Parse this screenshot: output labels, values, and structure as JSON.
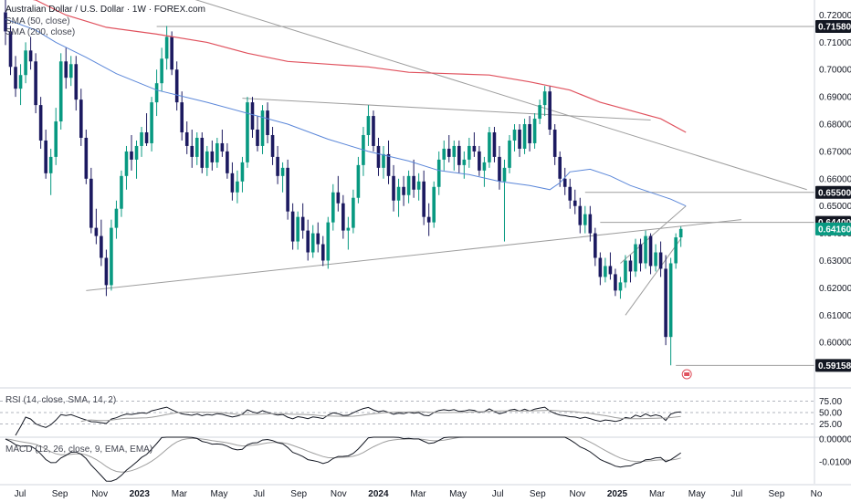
{
  "header": {
    "title": "Australian Dollar / U.S. Dollar · 1W · FOREX.com",
    "sma50_label": "SMA (50, close)",
    "sma200_label": "SMA (200, close)",
    "rsi_label": "RSI (14, close, SMA, 14, 2)",
    "macd_label": "MACD (12, 26, close, 9, EMA, EMA)"
  },
  "colors": {
    "up": "#089981",
    "down": "#1c1a60",
    "sma50": "#5b87d9",
    "sma200": "#e0525e",
    "trendline": "#9e9e9e",
    "level_tag": "#131722",
    "last_tag": "#089981"
  },
  "chart_data": {
    "type": "candlestick",
    "symbol": "AUDUSD",
    "timeframe": "1W",
    "price_axis": {
      "ticks": [
        "0.72000",
        "0.71000",
        "0.70000",
        "0.69000",
        "0.68000",
        "0.67000",
        "0.66000",
        "0.65000",
        "0.64000",
        "0.63000",
        "0.62000",
        "0.61000",
        "0.60000"
      ],
      "range": [
        0.585,
        0.7235
      ]
    },
    "price_tags": [
      {
        "label": "0.71580",
        "value": 0.7158,
        "style": "level"
      },
      {
        "label": "0.65500",
        "value": 0.655,
        "style": "level"
      },
      {
        "label": "0.64400",
        "value": 0.644,
        "style": "level"
      },
      {
        "label": "0.64160",
        "value": 0.6416,
        "style": "last"
      },
      {
        "label": "0.59158",
        "value": 0.59158,
        "style": "level"
      }
    ],
    "time_axis": [
      "Jul",
      "Sep",
      "Nov",
      "2023",
      "Mar",
      "May",
      "Jul",
      "Sep",
      "Nov",
      "2024",
      "Mar",
      "May",
      "Jul",
      "Sep",
      "Nov",
      "2025",
      "Mar",
      "May",
      "Jul",
      "Sep",
      "No"
    ],
    "candles": [
      [
        0.721,
        0.728,
        0.709,
        0.714
      ],
      [
        0.714,
        0.716,
        0.698,
        0.701
      ],
      [
        0.701,
        0.705,
        0.69,
        0.693
      ],
      [
        0.693,
        0.702,
        0.687,
        0.698
      ],
      [
        0.698,
        0.71,
        0.695,
        0.707
      ],
      [
        0.707,
        0.712,
        0.7,
        0.703
      ],
      [
        0.703,
        0.706,
        0.684,
        0.687
      ],
      [
        0.687,
        0.69,
        0.671,
        0.674
      ],
      [
        0.674,
        0.678,
        0.66,
        0.662
      ],
      [
        0.662,
        0.671,
        0.654,
        0.668
      ],
      [
        0.668,
        0.686,
        0.665,
        0.681
      ],
      [
        0.681,
        0.706,
        0.678,
        0.703
      ],
      [
        0.703,
        0.708,
        0.693,
        0.697
      ],
      [
        0.697,
        0.705,
        0.694,
        0.702
      ],
      [
        0.702,
        0.705,
        0.685,
        0.689
      ],
      [
        0.689,
        0.693,
        0.672,
        0.675
      ],
      [
        0.675,
        0.678,
        0.658,
        0.66
      ],
      [
        0.66,
        0.664,
        0.64,
        0.642
      ],
      [
        0.642,
        0.649,
        0.636,
        0.639
      ],
      [
        0.639,
        0.645,
        0.628,
        0.631
      ],
      [
        0.631,
        0.634,
        0.617,
        0.621
      ],
      [
        0.621,
        0.645,
        0.619,
        0.642
      ],
      [
        0.642,
        0.652,
        0.638,
        0.649
      ],
      [
        0.649,
        0.663,
        0.646,
        0.661
      ],
      [
        0.661,
        0.672,
        0.656,
        0.67
      ],
      [
        0.67,
        0.676,
        0.663,
        0.667
      ],
      [
        0.667,
        0.674,
        0.66,
        0.672
      ],
      [
        0.672,
        0.679,
        0.668,
        0.677
      ],
      [
        0.677,
        0.684,
        0.672,
        0.673
      ],
      [
        0.673,
        0.69,
        0.67,
        0.688
      ],
      [
        0.688,
        0.7,
        0.683,
        0.695
      ],
      [
        0.695,
        0.708,
        0.692,
        0.704
      ],
      [
        0.704,
        0.716,
        0.7,
        0.712
      ],
      [
        0.712,
        0.714,
        0.698,
        0.7
      ],
      [
        0.7,
        0.703,
        0.685,
        0.688
      ],
      [
        0.688,
        0.692,
        0.674,
        0.677
      ],
      [
        0.677,
        0.681,
        0.669,
        0.672
      ],
      [
        0.672,
        0.678,
        0.664,
        0.668
      ],
      [
        0.668,
        0.677,
        0.665,
        0.675
      ],
      [
        0.675,
        0.677,
        0.662,
        0.664
      ],
      [
        0.664,
        0.672,
        0.661,
        0.67
      ],
      [
        0.67,
        0.674,
        0.663,
        0.666
      ],
      [
        0.666,
        0.675,
        0.664,
        0.673
      ],
      [
        0.673,
        0.678,
        0.668,
        0.67
      ],
      [
        0.67,
        0.673,
        0.66,
        0.662
      ],
      [
        0.662,
        0.666,
        0.652,
        0.655
      ],
      [
        0.655,
        0.663,
        0.651,
        0.659
      ],
      [
        0.659,
        0.668,
        0.655,
        0.666
      ],
      [
        0.666,
        0.69,
        0.664,
        0.688
      ],
      [
        0.688,
        0.69,
        0.675,
        0.678
      ],
      [
        0.678,
        0.683,
        0.67,
        0.672
      ],
      [
        0.672,
        0.687,
        0.669,
        0.685
      ],
      [
        0.685,
        0.688,
        0.673,
        0.676
      ],
      [
        0.676,
        0.679,
        0.665,
        0.668
      ],
      [
        0.668,
        0.672,
        0.658,
        0.661
      ],
      [
        0.661,
        0.666,
        0.655,
        0.664
      ],
      [
        0.664,
        0.667,
        0.645,
        0.648
      ],
      [
        0.648,
        0.651,
        0.634,
        0.637
      ],
      [
        0.637,
        0.648,
        0.634,
        0.646
      ],
      [
        0.646,
        0.651,
        0.638,
        0.641
      ],
      [
        0.641,
        0.645,
        0.63,
        0.633
      ],
      [
        0.633,
        0.643,
        0.631,
        0.64
      ],
      [
        0.64,
        0.644,
        0.633,
        0.636
      ],
      [
        0.636,
        0.639,
        0.628,
        0.63
      ],
      [
        0.63,
        0.646,
        0.627,
        0.644
      ],
      [
        0.644,
        0.658,
        0.641,
        0.655
      ],
      [
        0.655,
        0.661,
        0.648,
        0.651
      ],
      [
        0.651,
        0.654,
        0.638,
        0.641
      ],
      [
        0.641,
        0.646,
        0.634,
        0.642
      ],
      [
        0.642,
        0.656,
        0.64,
        0.653
      ],
      [
        0.653,
        0.668,
        0.651,
        0.665
      ],
      [
        0.665,
        0.679,
        0.661,
        0.676
      ],
      [
        0.676,
        0.687,
        0.672,
        0.683
      ],
      [
        0.683,
        0.685,
        0.67,
        0.672
      ],
      [
        0.672,
        0.675,
        0.661,
        0.664
      ],
      [
        0.664,
        0.672,
        0.66,
        0.669
      ],
      [
        0.669,
        0.674,
        0.658,
        0.661
      ],
      [
        0.661,
        0.665,
        0.648,
        0.652
      ],
      [
        0.652,
        0.66,
        0.646,
        0.657
      ],
      [
        0.657,
        0.661,
        0.65,
        0.654
      ],
      [
        0.654,
        0.663,
        0.651,
        0.661
      ],
      [
        0.661,
        0.667,
        0.653,
        0.656
      ],
      [
        0.656,
        0.662,
        0.652,
        0.659
      ],
      [
        0.659,
        0.663,
        0.643,
        0.646
      ],
      [
        0.646,
        0.651,
        0.639,
        0.644
      ],
      [
        0.644,
        0.659,
        0.642,
        0.657
      ],
      [
        0.657,
        0.67,
        0.654,
        0.667
      ],
      [
        0.667,
        0.674,
        0.663,
        0.671
      ],
      [
        0.671,
        0.676,
        0.666,
        0.668
      ],
      [
        0.668,
        0.674,
        0.663,
        0.672
      ],
      [
        0.672,
        0.674,
        0.662,
        0.665
      ],
      [
        0.665,
        0.67,
        0.66,
        0.667
      ],
      [
        0.667,
        0.675,
        0.664,
        0.672
      ],
      [
        0.672,
        0.677,
        0.668,
        0.67
      ],
      [
        0.67,
        0.672,
        0.661,
        0.663
      ],
      [
        0.663,
        0.668,
        0.657,
        0.666
      ],
      [
        0.666,
        0.679,
        0.664,
        0.677
      ],
      [
        0.677,
        0.679,
        0.666,
        0.668
      ],
      [
        0.668,
        0.672,
        0.656,
        0.659
      ],
      [
        0.659,
        0.667,
        0.637,
        0.664
      ],
      [
        0.664,
        0.676,
        0.662,
        0.674
      ],
      [
        0.674,
        0.68,
        0.67,
        0.678
      ],
      [
        0.678,
        0.68,
        0.668,
        0.671
      ],
      [
        0.671,
        0.682,
        0.669,
        0.68
      ],
      [
        0.68,
        0.683,
        0.67,
        0.673
      ],
      [
        0.673,
        0.684,
        0.671,
        0.682
      ],
      [
        0.682,
        0.689,
        0.68,
        0.687
      ],
      [
        0.687,
        0.694,
        0.683,
        0.692
      ],
      [
        0.692,
        0.694,
        0.676,
        0.678
      ],
      [
        0.678,
        0.68,
        0.665,
        0.668
      ],
      [
        0.668,
        0.67,
        0.657,
        0.66
      ],
      [
        0.66,
        0.664,
        0.654,
        0.657
      ],
      [
        0.657,
        0.66,
        0.649,
        0.652
      ],
      [
        0.652,
        0.656,
        0.647,
        0.65
      ],
      [
        0.65,
        0.653,
        0.64,
        0.643
      ],
      [
        0.643,
        0.65,
        0.64,
        0.647
      ],
      [
        0.647,
        0.65,
        0.637,
        0.64
      ],
      [
        0.64,
        0.642,
        0.628,
        0.631
      ],
      [
        0.631,
        0.633,
        0.621,
        0.624
      ],
      [
        0.624,
        0.631,
        0.622,
        0.628
      ],
      [
        0.628,
        0.633,
        0.623,
        0.625
      ],
      [
        0.625,
        0.627,
        0.617,
        0.619
      ],
      [
        0.619,
        0.624,
        0.616,
        0.622
      ],
      [
        0.622,
        0.632,
        0.62,
        0.63
      ],
      [
        0.63,
        0.632,
        0.622,
        0.626
      ],
      [
        0.626,
        0.638,
        0.624,
        0.636
      ],
      [
        0.636,
        0.638,
        0.626,
        0.629
      ],
      [
        0.629,
        0.641,
        0.627,
        0.639
      ],
      [
        0.639,
        0.64,
        0.625,
        0.628
      ],
      [
        0.628,
        0.636,
        0.626,
        0.633
      ],
      [
        0.633,
        0.637,
        0.624,
        0.627
      ],
      [
        0.627,
        0.632,
        0.599,
        0.602
      ],
      [
        0.602,
        0.631,
        0.5916,
        0.629
      ],
      [
        0.629,
        0.64,
        0.627,
        0.6385
      ],
      [
        0.6385,
        0.6425,
        0.635,
        0.6416
      ]
    ],
    "sma50": [
      [
        0,
        0.7185
      ],
      [
        6,
        0.7145
      ],
      [
        10,
        0.71
      ],
      [
        16,
        0.7045
      ],
      [
        22,
        0.6985
      ],
      [
        30,
        0.6925
      ],
      [
        40,
        0.688
      ],
      [
        48,
        0.684
      ],
      [
        56,
        0.68
      ],
      [
        64,
        0.6745
      ],
      [
        72,
        0.67
      ],
      [
        80,
        0.6665
      ],
      [
        86,
        0.663
      ],
      [
        92,
        0.6615
      ],
      [
        98,
        0.659
      ],
      [
        104,
        0.6575
      ],
      [
        108,
        0.656
      ],
      [
        110,
        0.6585
      ],
      [
        112,
        0.6625
      ],
      [
        116,
        0.6635
      ],
      [
        120,
        0.661
      ],
      [
        124,
        0.6575
      ],
      [
        128,
        0.655
      ],
      [
        132,
        0.6525
      ],
      [
        135,
        0.65
      ]
    ],
    "sma200": [
      [
        0,
        0.7275
      ],
      [
        6,
        0.7255
      ],
      [
        12,
        0.72
      ],
      [
        20,
        0.7155
      ],
      [
        30,
        0.713
      ],
      [
        40,
        0.71
      ],
      [
        48,
        0.706
      ],
      [
        56,
        0.703
      ],
      [
        64,
        0.702
      ],
      [
        72,
        0.701
      ],
      [
        80,
        0.699
      ],
      [
        88,
        0.6985
      ],
      [
        96,
        0.698
      ],
      [
        104,
        0.6955
      ],
      [
        112,
        0.6925
      ],
      [
        118,
        0.688
      ],
      [
        124,
        0.685
      ],
      [
        130,
        0.682
      ],
      [
        135,
        0.677
      ]
    ],
    "indicators": {
      "rsi": {
        "label": "RSI (14, close, SMA, 14, 2)",
        "ticks": [
          "75.00",
          "50.00",
          "25.00"
        ],
        "range": [
          0,
          100
        ]
      },
      "macd": {
        "label": "MACD (12, 26, close, 9, EMA, EMA)",
        "ticks": [
          "0.00000",
          "-0.01000"
        ],
        "range": [
          -0.0195,
          0.0
        ]
      }
    }
  }
}
